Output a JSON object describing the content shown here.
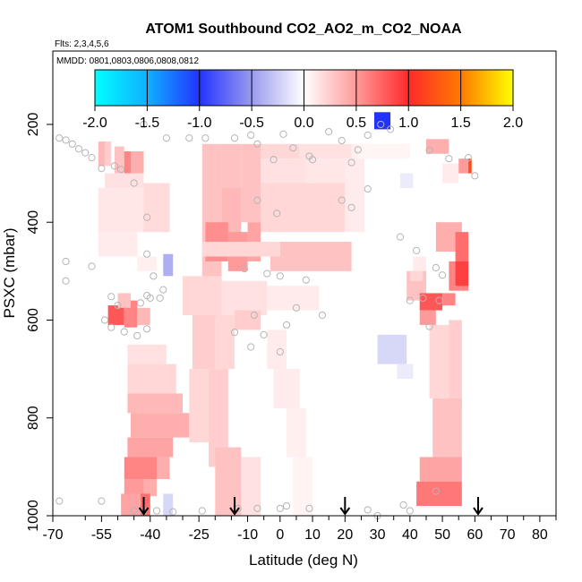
{
  "chart_data": {
    "type": "heatmap",
    "title": "ATOM1 Southbound CO2_AO2_m_CO2_NOAA",
    "subtitle_flights": "Flts: 2,3,4,5,6",
    "subtitle_dates": "MMDD: 0801,0803,0806,0808,0812",
    "xlabel": "Latitude (deg N)",
    "ylabel": "PSXC (mbar)",
    "xlim": [
      -70,
      85
    ],
    "ylim": [
      1000,
      50
    ],
    "x_tick_labels": [
      "-70",
      "-55",
      "-40",
      "-25",
      "-10",
      "0",
      "10",
      "20",
      "30",
      "40",
      "50",
      "60",
      "70",
      "80"
    ],
    "x_tick_values": [
      -70,
      -55,
      -40,
      -25,
      -10,
      0,
      10,
      20,
      30,
      40,
      50,
      60,
      70,
      80
    ],
    "x_minor_ticks": [
      -60,
      -50,
      -45,
      -35,
      -30,
      -20,
      -15,
      -5,
      5,
      15,
      25,
      35,
      45,
      55,
      65,
      75,
      85
    ],
    "y_tick_labels": [
      "200",
      "400",
      "600",
      "800",
      "1000"
    ],
    "y_tick_values": [
      200,
      400,
      600,
      800,
      1000
    ],
    "colorbar": {
      "min": -2.0,
      "max": 2.0,
      "tick_labels": [
        "-2.0",
        "-1.5",
        "-1.0",
        "-0.5",
        "0.0",
        "0.5",
        "1.0",
        "1.5",
        "2.0"
      ],
      "tick_values": [
        -2.0,
        -1.5,
        -1.0,
        -0.5,
        0.0,
        0.5,
        1.0,
        1.5,
        2.0
      ],
      "color_stops": [
        {
          "v": -2.0,
          "color": "#00ffff"
        },
        {
          "v": -1.5,
          "color": "#0fb0ff"
        },
        {
          "v": -1.0,
          "color": "#2233ff"
        },
        {
          "v": -0.5,
          "color": "#9a9aee"
        },
        {
          "v": 0.0,
          "color": "#ffffff"
        },
        {
          "v": 0.5,
          "color": "#ff9a9a"
        },
        {
          "v": 1.0,
          "color": "#ff2a2a"
        },
        {
          "v": 1.5,
          "color": "#ff7a00"
        },
        {
          "v": 2.0,
          "color": "#ffff00"
        }
      ]
    },
    "arrow_latitudes": [
      -42,
      -14,
      20,
      61
    ],
    "cells": [
      {
        "lat": [
          -56,
          -54
        ],
        "p": [
          235,
          285
        ],
        "v": 0.35
      },
      {
        "lat": [
          -54,
          -52
        ],
        "p": [
          235,
          285
        ],
        "v": 0.25
      },
      {
        "lat": [
          -51,
          -48
        ],
        "p": [
          245,
          300
        ],
        "v": 0.3
      },
      {
        "lat": [
          -48,
          -46
        ],
        "p": [
          255,
          300
        ],
        "v": 0.6
      },
      {
        "lat": [
          -46,
          -42
        ],
        "p": [
          255,
          300
        ],
        "v": 0.4
      },
      {
        "lat": [
          -54,
          -42
        ],
        "p": [
          300,
          330
        ],
        "v": 0.15
      },
      {
        "lat": [
          -56,
          -34
        ],
        "p": [
          330,
          420
        ],
        "v": 0.12
      },
      {
        "lat": [
          -42,
          -34
        ],
        "p": [
          320,
          420
        ],
        "v": 0.18
      },
      {
        "lat": [
          -56,
          -44
        ],
        "p": [
          420,
          470
        ],
        "v": 0.1
      },
      {
        "lat": [
          -44,
          -38
        ],
        "p": [
          470,
          500
        ],
        "v": 0.08
      },
      {
        "lat": [
          -53,
          -48
        ],
        "p": [
          570,
          610
        ],
        "v": 0.8
      },
      {
        "lat": [
          -48,
          -44
        ],
        "p": [
          560,
          615
        ],
        "v": 0.6
      },
      {
        "lat": [
          -44,
          -40
        ],
        "p": [
          575,
          610
        ],
        "v": 0.35
      },
      {
        "lat": [
          -50,
          -46
        ],
        "p": [
          545,
          575
        ],
        "v": 0.3
      },
      {
        "lat": [
          -47,
          -35
        ],
        "p": [
          650,
          690
        ],
        "v": 0.15
      },
      {
        "lat": [
          -47,
          -32
        ],
        "p": [
          690,
          750
        ],
        "v": 0.2
      },
      {
        "lat": [
          -47,
          -30
        ],
        "p": [
          750,
          790
        ],
        "v": 0.35
      },
      {
        "lat": [
          -46,
          -28
        ],
        "p": [
          790,
          840
        ],
        "v": 0.4
      },
      {
        "lat": [
          -47,
          -33
        ],
        "p": [
          840,
          880
        ],
        "v": 0.45
      },
      {
        "lat": [
          -48,
          -38
        ],
        "p": [
          880,
          925
        ],
        "v": 0.6
      },
      {
        "lat": [
          -38,
          -34
        ],
        "p": [
          880,
          925
        ],
        "v": 0.4
      },
      {
        "lat": [
          -48,
          -42
        ],
        "p": [
          925,
          960
        ],
        "v": 0.5
      },
      {
        "lat": [
          -42,
          -38
        ],
        "p": [
          925,
          960
        ],
        "v": 0.4
      },
      {
        "lat": [
          -49,
          -43
        ],
        "p": [
          955,
          1000
        ],
        "v": 0.45
      },
      {
        "lat": [
          -43,
          -40
        ],
        "p": [
          955,
          1000
        ],
        "v": 0.7
      },
      {
        "lat": [
          -36,
          -33
        ],
        "p": [
          465,
          510
        ],
        "v": -0.4
      },
      {
        "lat": [
          -36,
          -33
        ],
        "p": [
          955,
          1000
        ],
        "v": -0.2
      },
      {
        "lat": [
          -24,
          -18
        ],
        "p": [
          240,
          600
        ],
        "v": 0.3
      },
      {
        "lat": [
          -18,
          -12
        ],
        "p": [
          240,
          330
        ],
        "v": 0.3
      },
      {
        "lat": [
          -18,
          -12
        ],
        "p": [
          330,
          450
        ],
        "v": 0.35
      },
      {
        "lat": [
          -12,
          -6
        ],
        "p": [
          240,
          400
        ],
        "v": 0.3
      },
      {
        "lat": [
          -23,
          -16
        ],
        "p": [
          400,
          480
        ],
        "v": 0.55
      },
      {
        "lat": [
          -16,
          -10
        ],
        "p": [
          420,
          500
        ],
        "v": 0.5
      },
      {
        "lat": [
          -10,
          -6
        ],
        "p": [
          400,
          480
        ],
        "v": 0.45
      },
      {
        "lat": [
          -6,
          6
        ],
        "p": [
          240,
          270
        ],
        "v": 0.2
      },
      {
        "lat": [
          6,
          22
        ],
        "p": [
          240,
          270
        ],
        "v": 0.15
      },
      {
        "lat": [
          22,
          30
        ],
        "p": [
          240,
          270
        ],
        "v": 0.08
      },
      {
        "lat": [
          -6,
          8
        ],
        "p": [
          270,
          320
        ],
        "v": 0.15
      },
      {
        "lat": [
          -6,
          20
        ],
        "p": [
          320,
          420
        ],
        "v": 0.2
      },
      {
        "lat": [
          8,
          20
        ],
        "p": [
          270,
          320
        ],
        "v": 0.12
      },
      {
        "lat": [
          20,
          26
        ],
        "p": [
          270,
          420
        ],
        "v": 0.1
      },
      {
        "lat": [
          -24,
          0
        ],
        "p": [
          440,
          470
        ],
        "v": 0.2
      },
      {
        "lat": [
          0,
          22
        ],
        "p": [
          440,
          470
        ],
        "v": 0.3
      },
      {
        "lat": [
          -3,
          22
        ],
        "p": [
          470,
          500
        ],
        "v": 0.3
      },
      {
        "lat": [
          -30,
          -18
        ],
        "p": [
          510,
          590
        ],
        "v": 0.2
      },
      {
        "lat": [
          -18,
          -4
        ],
        "p": [
          520,
          590
        ],
        "v": 0.15
      },
      {
        "lat": [
          -4,
          12
        ],
        "p": [
          530,
          580
        ],
        "v": 0.1
      },
      {
        "lat": [
          -27,
          -20
        ],
        "p": [
          590,
          700
        ],
        "v": 0.25
      },
      {
        "lat": [
          -20,
          -14
        ],
        "p": [
          590,
          700
        ],
        "v": 0.2
      },
      {
        "lat": [
          -14,
          -6
        ],
        "p": [
          580,
          620
        ],
        "v": 0.25
      },
      {
        "lat": [
          -28,
          -22
        ],
        "p": [
          700,
          850
        ],
        "v": 0.2
      },
      {
        "lat": [
          -22,
          -16
        ],
        "p": [
          700,
          900
        ],
        "v": 0.25
      },
      {
        "lat": [
          -20,
          -12
        ],
        "p": [
          860,
          1000
        ],
        "v": 0.3
      },
      {
        "lat": [
          -12,
          -6
        ],
        "p": [
          880,
          1000
        ],
        "v": 0.15
      },
      {
        "lat": [
          -4,
          2
        ],
        "p": [
          620,
          700
        ],
        "v": 0.1
      },
      {
        "lat": [
          -2,
          6
        ],
        "p": [
          700,
          780
        ],
        "v": 0.1
      },
      {
        "lat": [
          2,
          8
        ],
        "p": [
          780,
          880
        ],
        "v": 0.08
      },
      {
        "lat": [
          4,
          10
        ],
        "p": [
          880,
          1000
        ],
        "v": 0.06
      },
      {
        "lat": [
          29,
          34
        ],
        "p": [
          175,
          210
        ],
        "v": -1.0
      },
      {
        "lat": [
          41,
          45
        ],
        "p": [
          470,
          500
        ],
        "v": 0.1
      },
      {
        "lat": [
          39,
          45
        ],
        "p": [
          500,
          560
        ],
        "v": 0.3
      },
      {
        "lat": [
          43,
          50
        ],
        "p": [
          545,
          580
        ],
        "v": 0.8
      },
      {
        "lat": [
          50,
          54
        ],
        "p": [
          545,
          570
        ],
        "v": 0.6
      },
      {
        "lat": [
          40,
          44
        ],
        "p": [
          500,
          520
        ],
        "v": 0.2
      },
      {
        "lat": [
          43,
          48
        ],
        "p": [
          580,
          610
        ],
        "v": 0.5
      },
      {
        "lat": [
          45,
          52
        ],
        "p": [
          230,
          260
        ],
        "v": 0.4
      },
      {
        "lat": [
          50,
          55
        ],
        "p": [
          280,
          320
        ],
        "v": 0.1
      },
      {
        "lat": [
          55,
          58
        ],
        "p": [
          270,
          300
        ],
        "v": 0.5
      },
      {
        "lat": [
          58,
          59
        ],
        "p": [
          270,
          300
        ],
        "v": 1.2
      },
      {
        "lat": [
          48,
          56
        ],
        "p": [
          400,
          460
        ],
        "v": 0.4
      },
      {
        "lat": [
          54,
          58
        ],
        "p": [
          420,
          480
        ],
        "v": 0.7
      },
      {
        "lat": [
          52,
          58
        ],
        "p": [
          480,
          540
        ],
        "v": 0.6
      },
      {
        "lat": [
          54,
          58
        ],
        "p": [
          480,
          530
        ],
        "v": 0.9
      },
      {
        "lat": [
          46,
          52
        ],
        "p": [
          610,
          760
        ],
        "v": 0.2
      },
      {
        "lat": [
          52,
          56
        ],
        "p": [
          600,
          780
        ],
        "v": 0.25
      },
      {
        "lat": [
          47,
          56
        ],
        "p": [
          760,
          880
        ],
        "v": 0.3
      },
      {
        "lat": [
          43,
          56
        ],
        "p": [
          880,
          930
        ],
        "v": 0.45
      },
      {
        "lat": [
          42,
          56
        ],
        "p": [
          930,
          980
        ],
        "v": 0.65
      },
      {
        "lat": [
          30,
          39
        ],
        "p": [
          630,
          690
        ],
        "v": -0.2
      },
      {
        "lat": [
          36,
          41
        ],
        "p": [
          690,
          720
        ],
        "v": -0.1
      },
      {
        "lat": [
          24,
          40
        ],
        "p": [
          240,
          270
        ],
        "v": 0.05
      },
      {
        "lat": [
          37,
          41
        ],
        "p": [
          300,
          330
        ],
        "v": -0.1
      }
    ],
    "points": [
      {
        "lat": -68,
        "p": 228
      },
      {
        "lat": -66,
        "p": 232
      },
      {
        "lat": -64,
        "p": 240
      },
      {
        "lat": -62,
        "p": 250
      },
      {
        "lat": -60,
        "p": 258
      },
      {
        "lat": -58,
        "p": 268
      },
      {
        "lat": -55,
        "p": 290
      },
      {
        "lat": -51,
        "p": 285
      },
      {
        "lat": -49,
        "p": 292
      },
      {
        "lat": -45,
        "p": 320
      },
      {
        "lat": -42,
        "p": 200
      },
      {
        "lat": -41,
        "p": 390
      },
      {
        "lat": -41,
        "p": 465
      },
      {
        "lat": -39,
        "p": 510
      },
      {
        "lat": -66,
        "p": 480
      },
      {
        "lat": -66,
        "p": 520
      },
      {
        "lat": -58,
        "p": 490
      },
      {
        "lat": -52,
        "p": 552
      },
      {
        "lat": -50,
        "p": 570
      },
      {
        "lat": -43,
        "p": 565
      },
      {
        "lat": -41,
        "p": 550
      },
      {
        "lat": -40,
        "p": 555
      },
      {
        "lat": -54,
        "p": 600
      },
      {
        "lat": -52,
        "p": 615
      },
      {
        "lat": -48,
        "p": 624
      },
      {
        "lat": -44,
        "p": 632
      },
      {
        "lat": -41,
        "p": 618
      },
      {
        "lat": -37,
        "p": 555
      },
      {
        "lat": -36,
        "p": 538
      },
      {
        "lat": -28,
        "p": 228
      },
      {
        "lat": -35,
        "p": 228
      },
      {
        "lat": -23,
        "p": 228
      },
      {
        "lat": -14,
        "p": 228
      },
      {
        "lat": -9,
        "p": 222
      },
      {
        "lat": -7,
        "p": 240
      },
      {
        "lat": 1,
        "p": 220
      },
      {
        "lat": 4,
        "p": 248
      },
      {
        "lat": 9,
        "p": 265
      },
      {
        "lat": 15,
        "p": 215
      },
      {
        "lat": 19,
        "p": 233
      },
      {
        "lat": 24,
        "p": 252
      },
      {
        "lat": 27,
        "p": 222
      },
      {
        "lat": -2,
        "p": 272
      },
      {
        "lat": 10,
        "p": 272
      },
      {
        "lat": 22,
        "p": 278
      },
      {
        "lat": -7,
        "p": 355
      },
      {
        "lat": -1,
        "p": 382
      },
      {
        "lat": 19,
        "p": 355
      },
      {
        "lat": 27,
        "p": 332
      },
      {
        "lat": 22,
        "p": 370
      },
      {
        "lat": -11,
        "p": 495
      },
      {
        "lat": -4,
        "p": 505
      },
      {
        "lat": 0,
        "p": 510
      },
      {
        "lat": 8,
        "p": 518
      },
      {
        "lat": 5,
        "p": 575
      },
      {
        "lat": -8,
        "p": 590
      },
      {
        "lat": -14,
        "p": 625
      },
      {
        "lat": 2,
        "p": 610
      },
      {
        "lat": -5,
        "p": 630
      },
      {
        "lat": -9,
        "p": 655
      },
      {
        "lat": 0,
        "p": 665
      },
      {
        "lat": 13,
        "p": 590
      },
      {
        "lat": 31,
        "p": 200
      },
      {
        "lat": 34,
        "p": 210
      },
      {
        "lat": 37,
        "p": 430
      },
      {
        "lat": 42,
        "p": 458
      },
      {
        "lat": 44,
        "p": 555
      },
      {
        "lat": 49,
        "p": 560
      },
      {
        "lat": 48,
        "p": 493
      },
      {
        "lat": 46,
        "p": 253
      },
      {
        "lat": 52,
        "p": 270
      },
      {
        "lat": 58,
        "p": 268
      },
      {
        "lat": 60,
        "p": 305
      },
      {
        "lat": 46,
        "p": 613
      },
      {
        "lat": 50,
        "p": 508
      },
      {
        "lat": 40,
        "p": 560
      },
      {
        "lat": 30,
        "p": 1000
      },
      {
        "lat": 38,
        "p": 978
      },
      {
        "lat": 40,
        "p": 990
      },
      {
        "lat": 48,
        "p": 950
      },
      {
        "lat": -45,
        "p": 990
      },
      {
        "lat": -42,
        "p": 990
      },
      {
        "lat": -38,
        "p": 990
      },
      {
        "lat": -55,
        "p": 970
      },
      {
        "lat": -68,
        "p": 970
      },
      {
        "lat": -13,
        "p": 985
      },
      {
        "lat": -7,
        "p": 985
      },
      {
        "lat": 0,
        "p": 985
      },
      {
        "lat": 2,
        "p": 980
      },
      {
        "lat": 9,
        "p": 985
      },
      {
        "lat": 27,
        "p": 988
      },
      {
        "lat": -24,
        "p": 990
      },
      {
        "lat": -33,
        "p": 992
      }
    ]
  }
}
